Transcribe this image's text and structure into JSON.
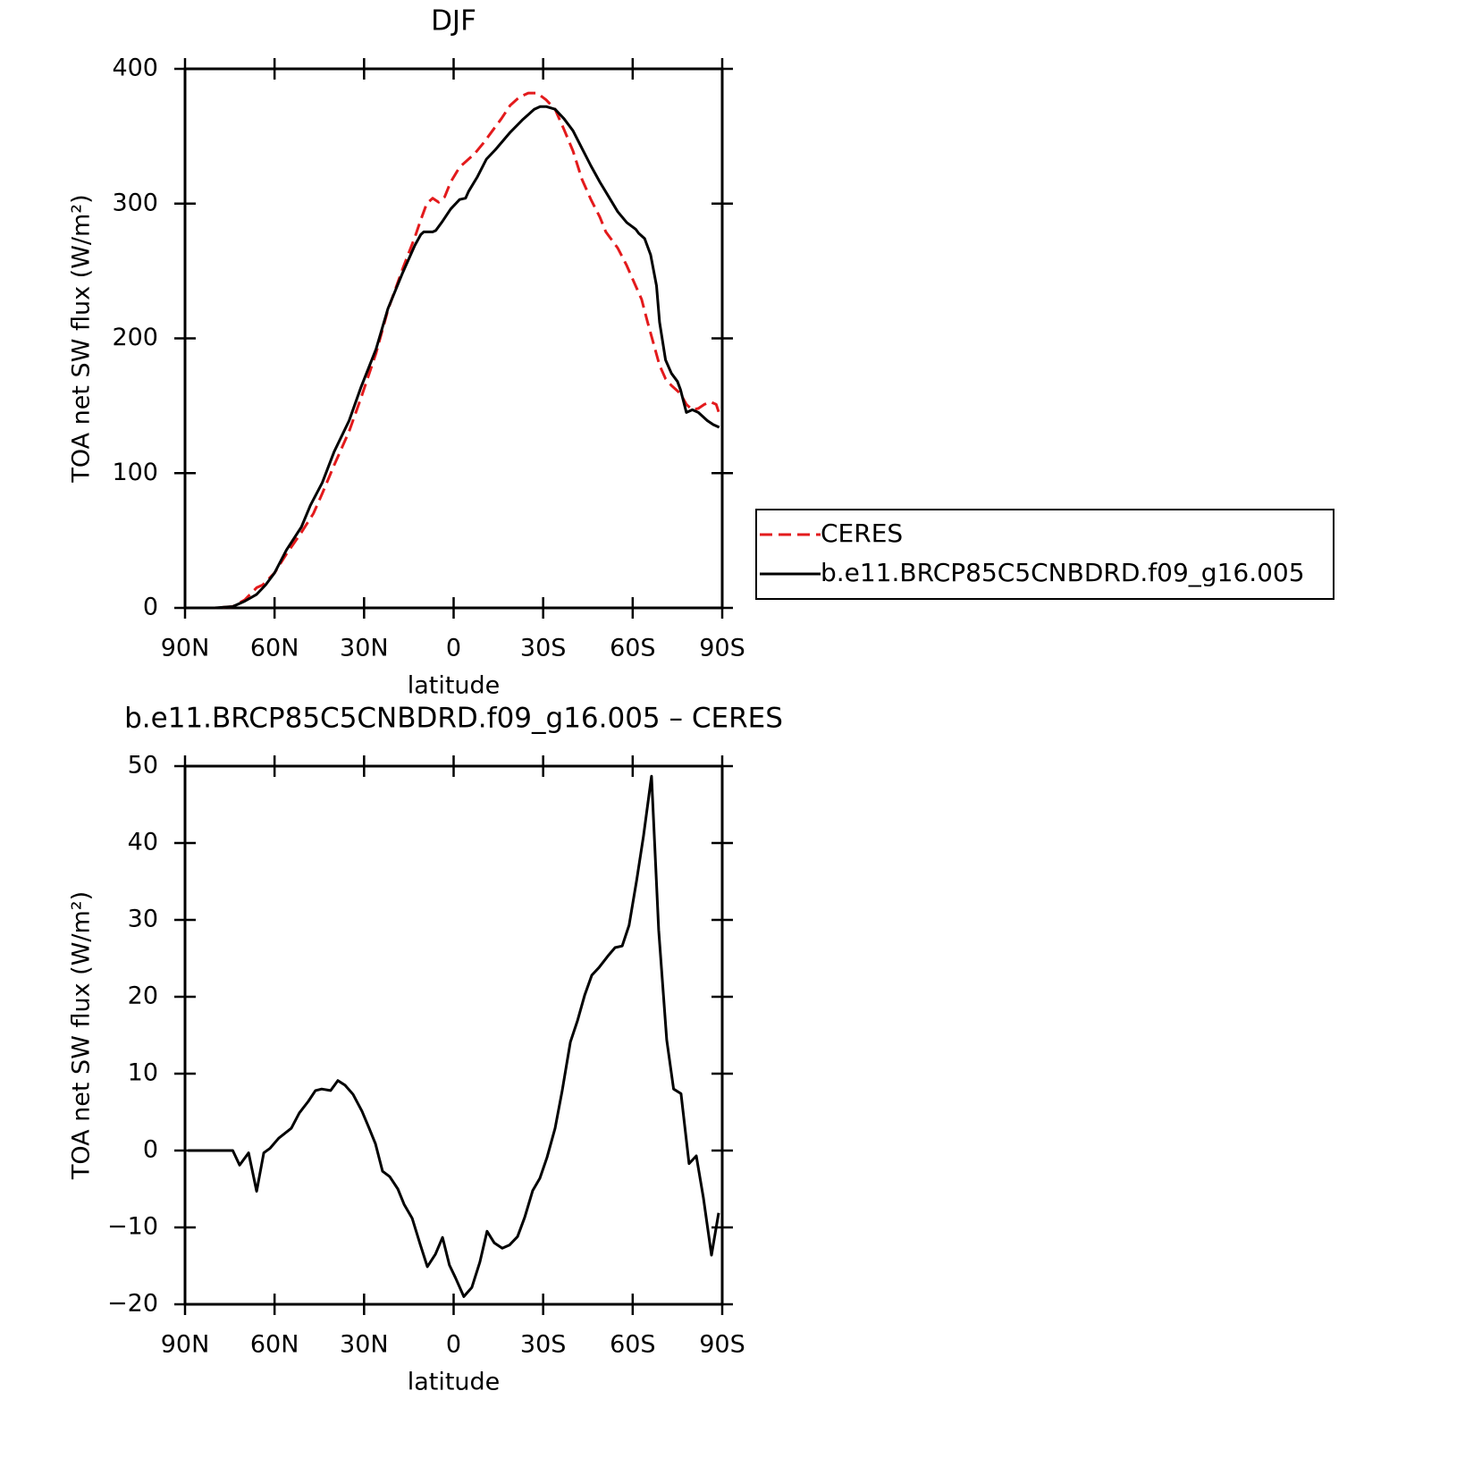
{
  "chart_data": [
    {
      "type": "line",
      "title": "DJF",
      "xlabel": "latitude",
      "ylabel": "TOA net SW flux (W/m²)",
      "xlim": [
        90,
        -90
      ],
      "xticks": [
        {
          "value": 90,
          "label": "90N"
        },
        {
          "value": 60,
          "label": "60N"
        },
        {
          "value": 30,
          "label": "30N"
        },
        0,
        {
          "value": -30,
          "label": "30S"
        },
        {
          "value": -60,
          "label": "60S"
        },
        {
          "value": -90,
          "label": "90S"
        }
      ],
      "ylim": [
        0,
        400
      ],
      "yticks": [
        0,
        100,
        200,
        300,
        400
      ],
      "legend": "right",
      "series": [
        {
          "name": "CERES",
          "color": "#e31a1c",
          "linestyle": "dashed",
          "x": [
            90,
            80,
            74,
            70,
            66,
            64,
            60,
            56,
            51,
            47,
            44,
            40,
            35,
            31,
            26,
            22,
            17,
            13,
            11,
            9,
            7,
            5,
            3,
            1,
            -2,
            -4,
            -7,
            -10,
            -13,
            -16,
            -19,
            -22,
            -25,
            -28,
            -31,
            -34,
            -37,
            -40,
            -43,
            -46,
            -49,
            -51,
            -55,
            -58,
            -60,
            -63,
            -65,
            -67,
            -69,
            -71,
            -73,
            -76,
            -78,
            -80,
            -82,
            -84,
            -86,
            -88,
            -89
          ],
          "values": [
            0,
            0,
            1,
            6,
            15,
            17,
            26,
            40,
            56,
            70,
            85,
            106,
            131,
            156,
            189,
            221,
            252,
            275,
            288,
            300,
            304,
            301,
            305,
            316,
            327,
            331,
            337,
            345,
            354,
            363,
            373,
            379,
            382,
            382,
            377,
            370,
            355,
            339,
            318,
            303,
            290,
            279,
            267,
            254,
            244,
            229,
            212,
            196,
            180,
            170,
            165,
            159,
            151,
            147,
            148,
            151,
            153,
            151,
            144
          ]
        },
        {
          "name": "b.e11.BRCP85C5CNBDRD.f09_g16.005",
          "color": "#000000",
          "linestyle": "solid",
          "x": [
            90,
            80,
            74,
            70,
            66,
            63,
            60,
            56,
            51,
            48,
            44,
            40,
            35,
            31,
            26,
            22,
            17,
            13,
            11,
            10,
            7,
            6,
            4,
            1,
            -2,
            -4,
            -5,
            -8,
            -11,
            -14,
            -19,
            -23,
            -27,
            -29,
            -31,
            -34,
            -37,
            -40,
            -43,
            -46,
            -49,
            -52,
            -55,
            -58,
            -61,
            -62,
            -64,
            -66,
            -68,
            -69,
            -71,
            -73,
            -75,
            -76,
            -78,
            -80,
            -82,
            -85,
            -87,
            -89
          ],
          "values": [
            0,
            0,
            1,
            5,
            10,
            17,
            26,
            43,
            60,
            76,
            93,
            116,
            139,
            164,
            192,
            222,
            249,
            269,
            277,
            279,
            279,
            280,
            286,
            296,
            303,
            304,
            309,
            320,
            333,
            340,
            353,
            362,
            370,
            372,
            372,
            370,
            363,
            354,
            341,
            328,
            316,
            305,
            294,
            286,
            281,
            278,
            274,
            262,
            239,
            212,
            184,
            174,
            168,
            162,
            145,
            147,
            145,
            139,
            136,
            134
          ]
        }
      ]
    },
    {
      "type": "line",
      "title": "b.e11.BRCP85C5CNBDRD.f09_g16.005 – CERES",
      "xlabel": "latitude",
      "ylabel": "TOA net SW flux (W/m²)",
      "xlim": [
        90,
        -90
      ],
      "xticks": [
        {
          "value": 90,
          "label": "90N"
        },
        {
          "value": 60,
          "label": "60N"
        },
        {
          "value": 30,
          "label": "30N"
        },
        0,
        {
          "value": -30,
          "label": "30S"
        },
        {
          "value": -60,
          "label": "60S"
        },
        {
          "value": -90,
          "label": "90S"
        }
      ],
      "ylim": [
        -20,
        50
      ],
      "yticks": [
        {
          "value": -20,
          "label": "−20"
        },
        {
          "value": -10,
          "label": "−10"
        },
        0,
        10,
        20,
        30,
        40,
        50
      ],
      "color": "#000000",
      "x": [
        89,
        74,
        71.7,
        68.7,
        66,
        63.6,
        61.5,
        58.6,
        54.4,
        51.7,
        48.7,
        46.3,
        44.2,
        41.2,
        38.8,
        36.4,
        33.7,
        30.7,
        28.3,
        26.2,
        23.8,
        21.4,
        18.7,
        16.6,
        13.9,
        11.2,
        8.8,
        6.1,
        3.7,
        1.4,
        -0.7,
        -3.4,
        -6.1,
        -8.8,
        -11.2,
        -13.6,
        -16.3,
        -18.7,
        -21.4,
        -23.8,
        -26.5,
        -28.9,
        -31.3,
        -34,
        -36.4,
        -39.1,
        -41.5,
        -43.9,
        -46.3,
        -48.7,
        -51.7,
        -54.1,
        -56.5,
        -58.8,
        -61.3,
        -63.6,
        -66.3,
        -68.7,
        -71.4,
        -73.7,
        -76.2,
        -78.9,
        -81.3,
        -83.7,
        -86.4,
        -88.8
      ],
      "values": [
        0,
        0,
        -1.9,
        -0.3,
        -5.3,
        -0.3,
        0.3,
        1.6,
        2.9,
        4.9,
        6.4,
        7.8,
        8,
        7.8,
        9.1,
        8.5,
        7.3,
        5.1,
        2.9,
        0.9,
        -2.7,
        -3.4,
        -5,
        -7,
        -8.8,
        -12.2,
        -15.1,
        -13.5,
        -11.3,
        -14.9,
        -16.6,
        -19,
        -17.8,
        -14.5,
        -10.5,
        -12,
        -12.7,
        -12.3,
        -11.2,
        -8.7,
        -5.2,
        -3.6,
        -0.9,
        2.9,
        7.8,
        14.1,
        16.9,
        20.2,
        22.8,
        23.8,
        25.3,
        26.4,
        26.6,
        29.3,
        35.1,
        40.9,
        48.7,
        28.7,
        14.4,
        8,
        7.4,
        -1.7,
        -0.7,
        -6.2,
        -13.6,
        -8.1
      ]
    }
  ]
}
